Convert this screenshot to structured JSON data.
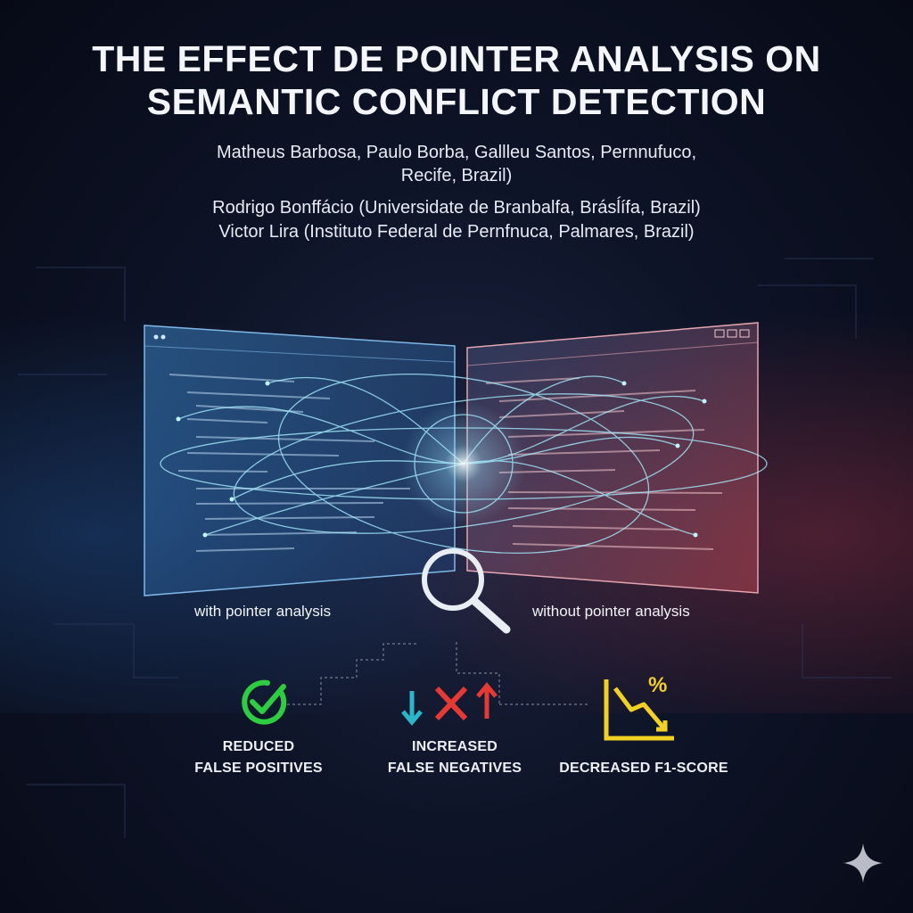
{
  "title": {
    "line1": "THE EFFECT DE POINTER ANALYSIS ON",
    "line2": "SEMANTIC CONFLICT DETECTION"
  },
  "authors": {
    "line1": "Matheus Barbosa, Paulo Borba, Gallleu Santos, Pernnufuco,",
    "line1b": "Recife, Brazil)",
    "line2": "Rodrigo Bonffácio (Universidate de Branbalfa, Brásĺífa, Brazil)",
    "line3": "Victor Lira (Instituto Federal de Pernfnuca, Palmares, Brazil)"
  },
  "panels": {
    "left_label": "with pointer analysis",
    "right_label": "without pointer analysis"
  },
  "metrics": [
    {
      "icon": "check-circle-icon",
      "line1": "REDUCED",
      "line2": "FALSE POSITIVES",
      "color": "#2ecc40"
    },
    {
      "icon": "arrows-cross-icon",
      "line1": "INCREASED",
      "line2": "FALSE NEGATIVES",
      "color": "#e53935"
    },
    {
      "icon": "declining-chart-percent-icon",
      "line1": "DECREASED F1-SCORE",
      "color": "#f2d024"
    }
  ],
  "colors": {
    "left_panel": "#2f6fb0",
    "right_panel": "#b04a55",
    "accent_cyan": "#7fe3ff"
  }
}
